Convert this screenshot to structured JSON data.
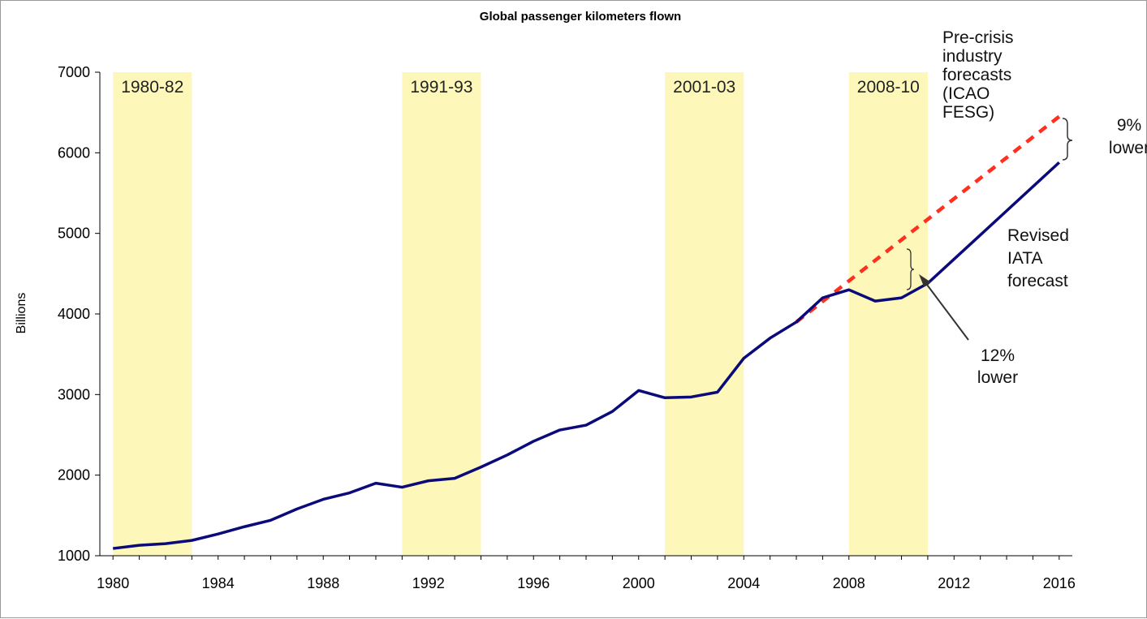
{
  "chart_data": {
    "type": "line",
    "title": "Global passenger kilometers flown",
    "xlabel": "",
    "ylabel": "Billions",
    "xlim": [
      1979.5,
      2016.5
    ],
    "ylim": [
      1000,
      7000
    ],
    "x_ticks": [
      1980,
      1984,
      1988,
      1992,
      1996,
      2000,
      2004,
      2008,
      2012,
      2016
    ],
    "y_ticks": [
      1000,
      2000,
      3000,
      4000,
      5000,
      6000,
      7000
    ],
    "grid": false,
    "legend": "none",
    "colors": {
      "actual": "#0a0a7a",
      "precrisis": "#ff3020",
      "band": "#fdf8ba",
      "annotation": "#333333"
    },
    "shaded_periods": [
      {
        "label": "1980-82",
        "start": 1980,
        "end": 1983
      },
      {
        "label": "1991-93",
        "start": 1991,
        "end": 1994
      },
      {
        "label": "2001-03",
        "start": 2001,
        "end": 2004
      },
      {
        "label": "2008-10",
        "start": 2008,
        "end": 2011
      }
    ],
    "series": [
      {
        "style": "solid",
        "color": "#0a0a7a",
        "x": [
          1980,
          1981,
          1982,
          1983,
          1984,
          1985,
          1986,
          1987,
          1988,
          1989,
          1990,
          1991,
          1992,
          1993,
          1994,
          1995,
          1996,
          1997,
          1998,
          1999,
          2000,
          2001,
          2002,
          2003,
          2004,
          2005,
          2006,
          2007,
          2008,
          2009,
          2010,
          2011,
          2012,
          2013,
          2014,
          2015,
          2016
        ],
        "values": [
          1090,
          1130,
          1150,
          1190,
          1270,
          1360,
          1440,
          1580,
          1700,
          1780,
          1900,
          1850,
          1930,
          1960,
          2100,
          2250,
          2420,
          2560,
          2620,
          2790,
          3050,
          2960,
          2970,
          3030,
          3450,
          3700,
          3900,
          4200,
          4300,
          4160,
          4200,
          4380,
          4680,
          4980,
          5280,
          5580,
          5880
        ]
      },
      {
        "style": "dashed",
        "color": "#ff3020",
        "x": [
          2006,
          2016
        ],
        "values": [
          3900,
          6450
        ]
      }
    ],
    "annotations": [
      {
        "text": [
          "Pre-crisis",
          "industry",
          "forecasts",
          "(ICAO",
          "FESG)"
        ]
      },
      {
        "text": [
          "9%",
          "lower"
        ]
      },
      {
        "text": [
          "Revised",
          "IATA",
          "forecast"
        ]
      },
      {
        "text": [
          "12%",
          "lower"
        ]
      }
    ]
  }
}
